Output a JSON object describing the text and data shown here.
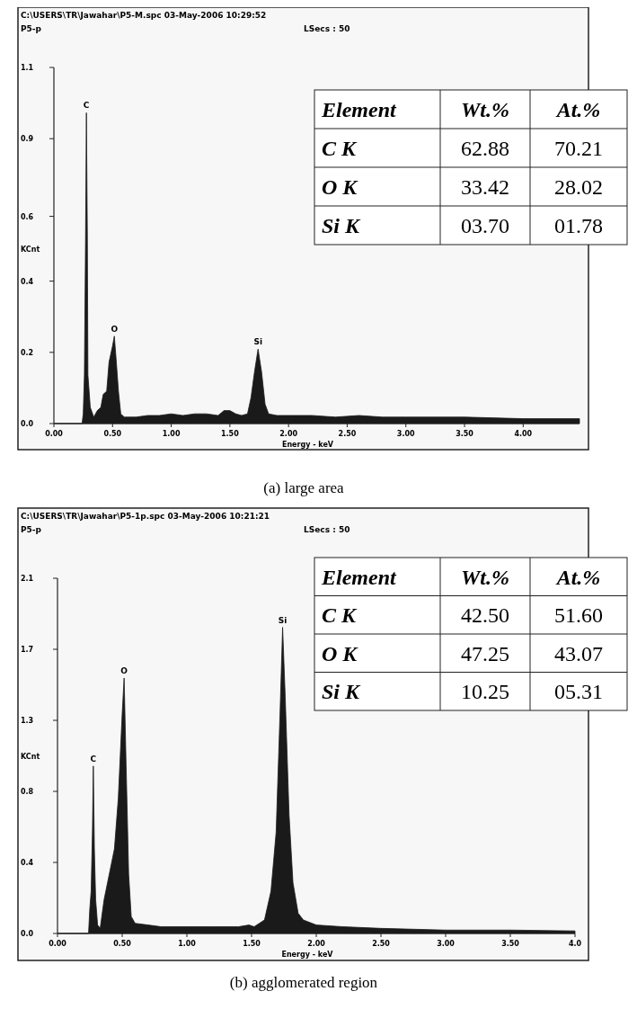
{
  "chart_data": [
    {
      "type": "area",
      "title": "(a) large area",
      "xlabel": "Energy - keV",
      "ylabel": "KCnt",
      "xlim": [
        0,
        4.48
      ],
      "xticks": [
        {
          "value": 0,
          "label": "0.00"
        },
        {
          "value": 0.5,
          "label": "0.50"
        },
        {
          "value": 1,
          "label": "1.00"
        },
        {
          "value": 1.5,
          "label": "1.50"
        },
        {
          "value": 2,
          "label": "2.00"
        },
        {
          "value": 2.5,
          "label": "2.50"
        },
        {
          "value": 3,
          "label": "3.00"
        },
        {
          "value": 3.5,
          "label": "3.50"
        },
        {
          "value": 4,
          "label": "4.00"
        }
      ],
      "ylim": [
        0,
        1.1
      ],
      "yticks": [
        {
          "value": 0,
          "label": "0.0"
        },
        {
          "value": 0.22,
          "label": "0.2"
        },
        {
          "value": 0.44,
          "label": "0.4"
        },
        {
          "value": 0.64,
          "label": "0.6"
        },
        {
          "value": 0.88,
          "label": "0.9"
        },
        1.1
      ],
      "series": [
        {
          "color": "#1a1a1a",
          "x": [
            0,
            0.24,
            0.25,
            0.26,
            0.27,
            0.277,
            0.285,
            0.29,
            0.31,
            0.34,
            0.37,
            0.4,
            0.42,
            0.45,
            0.47,
            0.5,
            0.515,
            0.53,
            0.55,
            0.57,
            0.6,
            0.7,
            0.8,
            0.9,
            1.0,
            1.1,
            1.2,
            1.3,
            1.4,
            1.45,
            1.5,
            1.55,
            1.6,
            1.65,
            1.68,
            1.71,
            1.74,
            1.77,
            1.8,
            1.83,
            1.9,
            2.0,
            2.2,
            2.4,
            2.6,
            2.8,
            3.0,
            3.5,
            4.0,
            4.48
          ],
          "values": [
            0,
            0,
            0.03,
            0.15,
            0.58,
            0.96,
            0.58,
            0.15,
            0.05,
            0.02,
            0.04,
            0.05,
            0.09,
            0.1,
            0.19,
            0.24,
            0.27,
            0.2,
            0.1,
            0.03,
            0.02,
            0.02,
            0.025,
            0.025,
            0.03,
            0.025,
            0.03,
            0.03,
            0.025,
            0.04,
            0.04,
            0.03,
            0.025,
            0.03,
            0.08,
            0.16,
            0.23,
            0.16,
            0.06,
            0.03,
            0.025,
            0.025,
            0.025,
            0.02,
            0.025,
            0.02,
            0.02,
            0.02,
            0.015,
            0.015
          ]
        }
      ],
      "annotations": [
        "C:\\USERS\\TR\\Jawahar\\P5-M.spc 03-May-2006 10:29:52",
        "P5-p",
        "LSecs : 50",
        {
          "text": "C",
          "x": 0.277,
          "y": 0.96
        },
        {
          "text": "O",
          "x": 0.515,
          "y": 0.27
        },
        {
          "text": "Si",
          "x": 1.74,
          "y": 0.23
        },
        "Element",
        "Wt.%",
        "At.%",
        "C K",
        "62.88",
        "70.21",
        "O K",
        "33.42",
        "28.02",
        "Si K",
        "03.70",
        "01.78"
      ]
    },
    {
      "type": "area",
      "title": "(b) agglomerated region",
      "xlabel": "Energy - keV",
      "ylabel": "KCnt",
      "xlim": [
        0,
        4.0
      ],
      "xticks": [
        {
          "value": 0,
          "label": "0.00"
        },
        {
          "value": 0.5,
          "label": "0.50"
        },
        {
          "value": 1,
          "label": "1.00"
        },
        {
          "value": 1.5,
          "label": "1.50"
        },
        {
          "value": 2,
          "label": "2.00"
        },
        {
          "value": 2.5,
          "label": "2.50"
        },
        {
          "value": 3,
          "label": "3.00"
        },
        {
          "value": 3.5,
          "label": "3.50"
        },
        {
          "value": 4,
          "label": "4.0"
        }
      ],
      "ylim": [
        0,
        2.1
      ],
      "yticks": [
        {
          "value": 0,
          "label": "0.0"
        },
        {
          "value": 0.42,
          "label": "0.4"
        },
        {
          "value": 0.84,
          "label": "0.8"
        },
        {
          "value": 1.26,
          "label": "1.3"
        },
        {
          "value": 1.68,
          "label": "1.7"
        },
        2.1
      ],
      "series": [
        {
          "color": "#1a1a1a",
          "x": [
            0,
            0.24,
            0.25,
            0.26,
            0.27,
            0.277,
            0.285,
            0.295,
            0.31,
            0.33,
            0.36,
            0.4,
            0.44,
            0.47,
            0.5,
            0.515,
            0.53,
            0.55,
            0.57,
            0.6,
            0.7,
            0.8,
            1.0,
            1.2,
            1.4,
            1.48,
            1.52,
            1.6,
            1.65,
            1.69,
            1.72,
            1.74,
            1.76,
            1.79,
            1.82,
            1.86,
            1.9,
            2.0,
            2.2,
            2.5,
            3.0,
            3.5,
            4.0
          ],
          "values": [
            0,
            0,
            0.15,
            0.25,
            0.6,
            0.99,
            0.5,
            0.2,
            0.05,
            0.03,
            0.2,
            0.35,
            0.5,
            0.8,
            1.3,
            1.51,
            1.0,
            0.35,
            0.1,
            0.06,
            0.05,
            0.04,
            0.04,
            0.04,
            0.04,
            0.05,
            0.04,
            0.08,
            0.25,
            0.6,
            1.3,
            1.81,
            1.4,
            0.7,
            0.3,
            0.12,
            0.08,
            0.05,
            0.04,
            0.03,
            0.02,
            0.02,
            0.015
          ]
        }
      ],
      "annotations": [
        "C:\\USERS\\TR\\Jawahar\\P5-1p.spc 03-May-2006 10:21:21",
        "P5-p",
        "LSecs : 50",
        {
          "text": "C",
          "x": 0.277,
          "y": 0.99
        },
        {
          "text": "O",
          "x": 0.515,
          "y": 1.51
        },
        {
          "text": "Si",
          "x": 1.74,
          "y": 1.81
        },
        "Element",
        "Wt.%",
        "At.%",
        "C K",
        "42.50",
        "51.60",
        "O K",
        "47.25",
        "43.07",
        "Si K",
        "10.25",
        "05.31"
      ]
    }
  ]
}
